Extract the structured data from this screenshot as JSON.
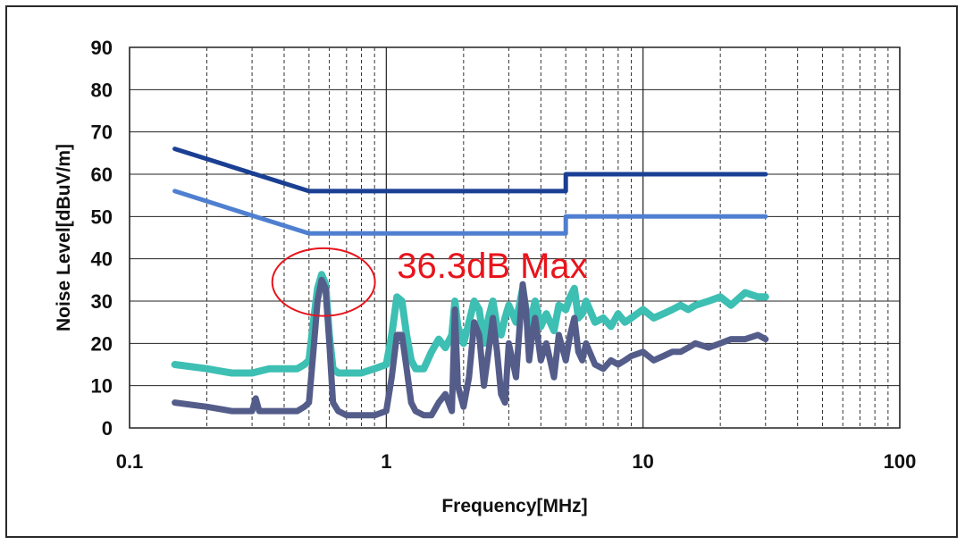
{
  "chart_data": {
    "type": "line",
    "xscale": "log",
    "xlim": [
      0.1,
      100
    ],
    "ylim": [
      0,
      90
    ],
    "xlabel": "Frequency[MHz]",
    "ylabel": "Noise Level[dBuV/m]",
    "xticks": [
      {
        "value": 0.1,
        "label": "0.1"
      },
      {
        "value": 1,
        "label": "1"
      },
      {
        "value": 10,
        "label": "10"
      },
      {
        "value": 100,
        "label": "100"
      }
    ],
    "yticks": [
      {
        "value": 0,
        "label": "0"
      },
      {
        "value": 10,
        "label": "10"
      },
      {
        "value": 20,
        "label": "20"
      },
      {
        "value": 30,
        "label": "30"
      },
      {
        "value": 40,
        "label": "40"
      },
      {
        "value": 50,
        "label": "50"
      },
      {
        "value": 60,
        "label": "60"
      },
      {
        "value": 70,
        "label": "70"
      },
      {
        "value": 80,
        "label": "80"
      },
      {
        "value": 90,
        "label": "90"
      }
    ],
    "grid": true,
    "colors": {
      "limit_upper": "#1a3f93",
      "limit_lower": "#4f7fd0",
      "quasi_peak": "#3dbfb3",
      "average": "#545d8a",
      "annotation": "#e8141c"
    },
    "series": [
      {
        "x": [
          0.15,
          0.5,
          5,
          5,
          30
        ],
        "y": [
          66,
          56,
          56,
          60,
          60
        ]
      },
      {
        "x": [
          0.15,
          0.5,
          5,
          5,
          30
        ],
        "y": [
          56,
          46,
          46,
          50,
          50
        ]
      },
      {
        "x": [
          0.15,
          0.2,
          0.25,
          0.3,
          0.35,
          0.4,
          0.45,
          0.48,
          0.5,
          0.52,
          0.54,
          0.56,
          0.58,
          0.6,
          0.62,
          0.65,
          0.7,
          0.8,
          0.9,
          1.0,
          1.05,
          1.1,
          1.15,
          1.2,
          1.25,
          1.3,
          1.4,
          1.5,
          1.6,
          1.7,
          1.8,
          1.85,
          1.9,
          2.0,
          2.1,
          2.2,
          2.3,
          2.4,
          2.5,
          2.6,
          2.7,
          2.8,
          2.9,
          3.0,
          3.2,
          3.4,
          3.5,
          3.6,
          3.7,
          3.8,
          4.0,
          4.2,
          4.5,
          4.7,
          5.0,
          5.2,
          5.4,
          5.6,
          5.8,
          6.0,
          6.5,
          7.0,
          7.5,
          8.0,
          8.5,
          9.0,
          10,
          11,
          12,
          13,
          14,
          15,
          16,
          18,
          20,
          22,
          25,
          28,
          30
        ],
        "y": [
          15,
          14,
          13,
          13,
          14,
          14,
          14,
          15,
          16,
          25,
          33,
          36.3,
          34,
          22,
          14,
          13,
          13,
          13,
          14,
          15,
          22,
          31,
          30,
          22,
          16,
          14,
          14,
          18,
          21,
          19,
          22,
          30,
          24,
          20,
          25,
          30,
          28,
          20,
          26,
          30,
          24,
          22,
          26,
          29,
          25,
          33,
          28,
          22,
          27,
          30,
          24,
          27,
          23,
          29,
          28,
          31,
          33,
          26,
          27,
          30,
          25,
          26,
          24,
          27,
          25,
          26,
          28,
          26,
          27,
          28,
          29,
          28,
          29,
          30,
          31,
          29,
          32,
          31,
          31
        ]
      },
      {
        "x": [
          0.15,
          0.2,
          0.25,
          0.3,
          0.31,
          0.32,
          0.35,
          0.4,
          0.45,
          0.48,
          0.5,
          0.52,
          0.54,
          0.56,
          0.58,
          0.6,
          0.62,
          0.65,
          0.7,
          0.8,
          0.9,
          1.0,
          1.05,
          1.1,
          1.15,
          1.2,
          1.25,
          1.3,
          1.4,
          1.5,
          1.6,
          1.7,
          1.8,
          1.85,
          1.9,
          2.0,
          2.1,
          2.2,
          2.3,
          2.4,
          2.5,
          2.6,
          2.7,
          2.8,
          2.9,
          3.0,
          3.2,
          3.4,
          3.5,
          3.6,
          3.7,
          3.8,
          4.0,
          4.2,
          4.5,
          4.7,
          5.0,
          5.2,
          5.4,
          5.6,
          5.8,
          6.0,
          6.5,
          7.0,
          7.5,
          8.0,
          8.5,
          9.0,
          10,
          11,
          12,
          13,
          14,
          15,
          16,
          18,
          20,
          22,
          25,
          28,
          30
        ],
        "y": [
          6,
          5,
          4,
          4,
          7,
          4,
          4,
          4,
          4,
          5,
          6,
          18,
          30,
          35,
          33,
          20,
          6,
          4,
          3,
          3,
          3,
          4,
          12,
          22,
          22,
          14,
          6,
          4,
          3,
          3,
          6,
          8,
          4,
          28,
          10,
          5,
          12,
          25,
          22,
          10,
          18,
          26,
          18,
          8,
          6,
          20,
          12,
          34,
          28,
          16,
          22,
          26,
          16,
          20,
          12,
          22,
          16,
          22,
          26,
          18,
          16,
          20,
          15,
          14,
          16,
          15,
          16,
          17,
          18,
          16,
          17,
          18,
          18,
          19,
          20,
          19,
          20,
          21,
          21,
          22,
          21
        ]
      }
    ],
    "annotations": [
      {
        "text": "36.3dB Max",
        "x": 1.1,
        "y": 38.5,
        "color": "#e8141c"
      },
      {
        "shape": "ellipse",
        "cx": 0.57,
        "cy": 34.5,
        "rx_decades": 0.2,
        "ry": 8,
        "color": "#e8141c"
      }
    ]
  }
}
